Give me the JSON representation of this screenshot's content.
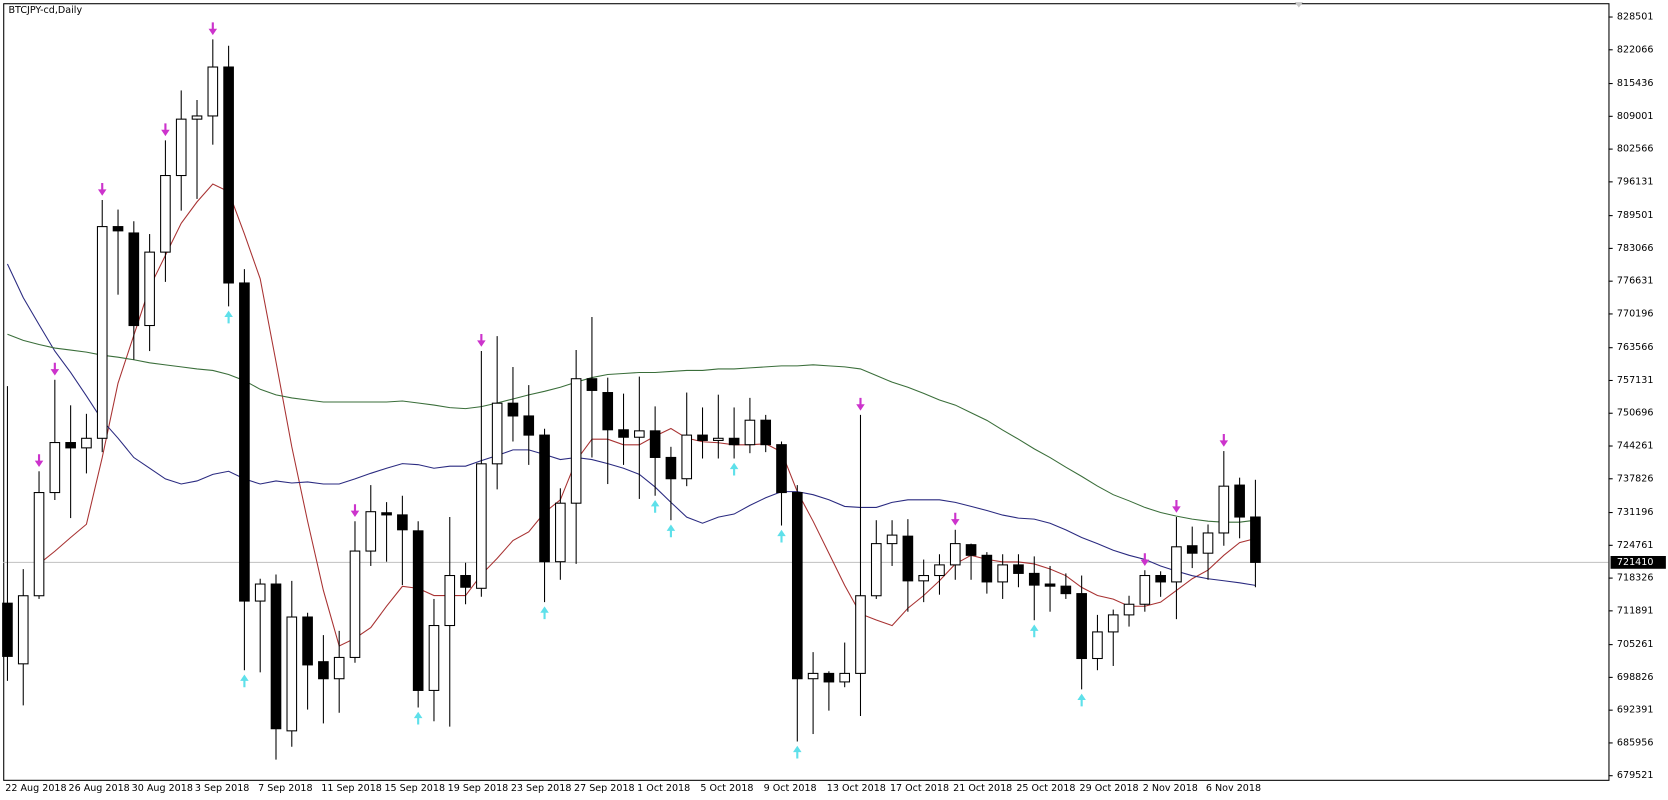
{
  "chart_data": {
    "type": "candlestick",
    "title": "BTCJPY-cd,Daily",
    "categories": [
      "22 Aug 2018",
      null,
      null,
      null,
      "26 Aug 2018",
      null,
      null,
      null,
      "30 Aug 2018",
      null,
      null,
      null,
      "3 Sep 2018",
      null,
      null,
      null,
      "7 Sep 2018",
      null,
      null,
      null,
      "11 Sep 2018",
      null,
      null,
      null,
      "15 Sep 2018",
      null,
      null,
      null,
      "19 Sep 2018",
      null,
      null,
      null,
      "23 Sep 2018",
      null,
      null,
      null,
      "27 Sep 2018",
      null,
      null,
      null,
      "1 Oct 2018",
      null,
      null,
      null,
      "5 Oct 2018",
      null,
      null,
      null,
      "9 Oct 2018",
      null,
      null,
      null,
      "13 Oct 2018",
      null,
      null,
      null,
      "17 Oct 2018",
      null,
      null,
      null,
      "21 Oct 2018",
      null,
      null,
      null,
      "25 Oct 2018",
      null,
      null,
      null,
      "29 Oct 2018",
      null,
      null,
      null,
      "2 Nov 2018",
      null,
      null,
      null,
      "6 Nov 2018",
      null,
      null,
      null
    ],
    "open": [
      713397,
      701489,
      714859,
      735122,
      744941,
      743896,
      745776,
      787347,
      786094,
      767920,
      782334,
      797374,
      808446,
      809073,
      818682,
      776276,
      713814,
      717157,
      688329,
      710681,
      701907,
      698565,
      702743,
      723633,
      731153,
      730735,
      727602,
      696267,
      709010,
      718828,
      716321,
      740763,
      752670,
      750163,
      746403,
      721544,
      733033,
      757475,
      754759,
      747447,
      745985,
      747238,
      742016,
      737838,
      746403,
      745358,
      745776,
      744523,
      749327,
      744523,
      735122,
      698565,
      699609,
      697938,
      699609,
      714859,
      725095,
      726557,
      717784,
      718828,
      720917,
      724886,
      722797,
      717575,
      720917,
      719246,
      717157,
      716739,
      715277,
      702534,
      707756,
      711099,
      713188,
      718828,
      717575,
      724677,
      723215,
      727184,
      736585,
      730318
    ],
    "high": [
      756012,
      720081,
      739300,
      757266,
      752252,
      750581,
      792570,
      790690,
      788392,
      785885,
      804268,
      814086,
      812206,
      824114,
      822860,
      778991,
      718201,
      719037,
      717784,
      711517,
      707130,
      707965,
      729482,
      736585,
      733242,
      734496,
      729482,
      714232,
      730318,
      721335,
      762906,
      765831,
      759772,
      756221,
      747656,
      735958,
      763115,
      769591,
      757683,
      754550,
      757892,
      752043,
      744105,
      754759,
      751834,
      754341,
      751834,
      753714,
      750372,
      745149,
      736585,
      703787,
      700027,
      705667,
      750372,
      729691,
      729691,
      729900,
      721962,
      723006,
      727811,
      725095,
      723424,
      723006,
      723006,
      722588,
      720708,
      719246,
      718828,
      711099,
      712143,
      714859,
      719873,
      719664,
      730318,
      728437,
      728855,
      743269,
      738047,
      737629
    ],
    "low": [
      698147,
      693342,
      714232,
      733660,
      730109,
      738882,
      743060,
      773978,
      761235,
      762906,
      776484,
      790481,
      792779,
      803433,
      771680,
      700236,
      699818,
      682688,
      685195,
      692507,
      689791,
      691880,
      701698,
      720708,
      721544,
      716948,
      692924,
      690209,
      689164,
      713188,
      714650,
      735749,
      745149,
      740554,
      713606,
      717992,
      721126,
      742016,
      736793,
      740554,
      733869,
      734496,
      729691,
      736376,
      741807,
      741807,
      741807,
      742852,
      743060,
      728646,
      686240,
      687702,
      692298,
      696894,
      691253,
      714232,
      720708,
      711725,
      713606,
      715068,
      717992,
      717992,
      715277,
      714232,
      716530,
      710054,
      711725,
      714232,
      696476,
      700236,
      701072,
      708801,
      711725,
      714650,
      710263,
      720290,
      717992,
      724677,
      726140,
      716530
    ],
    "close": [
      702952,
      714859,
      735122,
      744941,
      743896,
      745776,
      787347,
      786512,
      767920,
      782334,
      797374,
      808446,
      809073,
      818682,
      776276,
      713814,
      717157,
      688746,
      710681,
      701280,
      698565,
      702743,
      723633,
      731362,
      730735,
      727811,
      696267,
      709010,
      718828,
      716530,
      740763,
      752670,
      750163,
      746403,
      721544,
      733033,
      757475,
      755177,
      747447,
      745985,
      747238,
      742016,
      737838,
      746403,
      745358,
      745776,
      744523,
      749327,
      744523,
      735122,
      698565,
      699609,
      697938,
      699609,
      714859,
      725095,
      726766,
      717784,
      718828,
      720917,
      725095,
      722797,
      717575,
      720917,
      719246,
      716948,
      716739,
      715277,
      702534,
      707756,
      711099,
      713188,
      718828,
      717575,
      724468,
      723215,
      727184,
      736376,
      730318,
      721410
    ],
    "up_color": "#ffffff",
    "down_color": "#000000",
    "overlays": [
      {
        "color": "#a83232",
        "values": [
          null,
          null,
          721100,
          723600,
          726300,
          728900,
          742000,
          756600,
          766000,
          775400,
          781700,
          788000,
          792200,
          795700,
          794200,
          785900,
          777100,
          760800,
          744100,
          729500,
          715900,
          705000,
          706500,
          708600,
          712800,
          716700,
          716300,
          714900,
          714900,
          714900,
          719000,
          722200,
          725700,
          727400,
          731200,
          733700,
          741400,
          745600,
          745600,
          744500,
          744500,
          746200,
          747700,
          745800,
          745100,
          744900,
          744500,
          744500,
          744700,
          743100,
          735300,
          729500,
          723200,
          716900,
          711300,
          710100,
          709000,
          712400,
          714900,
          717800,
          721100,
          722800,
          722000,
          721500,
          721500,
          721100,
          720100,
          718800,
          716500,
          714900,
          714200,
          712800,
          712800,
          713600,
          715900,
          718200,
          719900,
          722800,
          725300,
          726100
        ]
      },
      {
        "color": "#2a2a80",
        "values": [
          780000,
          773400,
          768100,
          762900,
          758700,
          754100,
          749300,
          745800,
          742000,
          739900,
          737800,
          736800,
          737400,
          738700,
          739300,
          737800,
          736800,
          737400,
          737000,
          737200,
          736800,
          736800,
          737800,
          738900,
          739900,
          740800,
          740600,
          739900,
          740300,
          740300,
          741400,
          742400,
          743500,
          743500,
          742600,
          741600,
          742000,
          741600,
          740800,
          739900,
          738700,
          736200,
          733200,
          730300,
          729100,
          730300,
          730900,
          732600,
          734100,
          735300,
          735300,
          734700,
          733700,
          732400,
          732200,
          732200,
          733200,
          733700,
          733700,
          733700,
          733200,
          732400,
          731600,
          730700,
          730100,
          729900,
          729100,
          727800,
          726300,
          725100,
          723800,
          722800,
          722000,
          720700,
          719700,
          718800,
          718200,
          717800,
          717400,
          716900
        ]
      },
      {
        "color": "#3a6e3a",
        "values": [
          766200,
          765000,
          764200,
          763500,
          763100,
          762700,
          762100,
          761700,
          761200,
          760600,
          760200,
          759800,
          759400,
          759100,
          758300,
          757100,
          755400,
          754300,
          753700,
          753300,
          752900,
          752900,
          752900,
          752900,
          752900,
          753100,
          752700,
          752300,
          751800,
          751600,
          752000,
          752700,
          753500,
          754300,
          755000,
          755800,
          756800,
          757700,
          758300,
          758500,
          758700,
          758700,
          758900,
          759100,
          759100,
          759400,
          759400,
          759600,
          759800,
          760000,
          760000,
          760200,
          760000,
          759800,
          759400,
          758100,
          756800,
          755800,
          754600,
          753300,
          752300,
          750800,
          749300,
          747400,
          745600,
          743700,
          742000,
          740100,
          738300,
          736400,
          734700,
          733500,
          732200,
          731200,
          730500,
          729900,
          729500,
          729300,
          729300,
          729700
        ]
      }
    ],
    "arrows_down": {
      "color": "#cc33cc",
      "values": [
        null,
        null,
        739300,
        757266,
        null,
        null,
        792570,
        null,
        null,
        null,
        804268,
        null,
        null,
        824114,
        null,
        null,
        null,
        null,
        null,
        null,
        null,
        null,
        729482,
        null,
        null,
        null,
        null,
        null,
        null,
        null,
        762906,
        null,
        null,
        null,
        null,
        null,
        null,
        null,
        null,
        null,
        null,
        null,
        null,
        null,
        null,
        null,
        null,
        null,
        null,
        null,
        null,
        null,
        null,
        null,
        750372,
        null,
        null,
        null,
        null,
        null,
        727811,
        null,
        null,
        null,
        null,
        null,
        null,
        null,
        null,
        null,
        null,
        null,
        719873,
        null,
        730318,
        null,
        null,
        743269,
        null,
        null
      ]
    },
    "arrows_up": {
      "color": "#5ee0ea",
      "values": [
        null,
        null,
        null,
        null,
        null,
        null,
        null,
        null,
        null,
        null,
        null,
        null,
        null,
        null,
        771680,
        700236,
        null,
        null,
        null,
        null,
        null,
        null,
        null,
        null,
        null,
        null,
        692924,
        null,
        null,
        null,
        null,
        null,
        null,
        null,
        713606,
        null,
        null,
        null,
        null,
        null,
        null,
        734496,
        729691,
        null,
        null,
        null,
        741807,
        null,
        null,
        728646,
        686240,
        null,
        null,
        null,
        null,
        null,
        null,
        null,
        null,
        null,
        null,
        null,
        null,
        null,
        null,
        710054,
        null,
        null,
        696476,
        null,
        null,
        null,
        null,
        null,
        null,
        null,
        null,
        null,
        null,
        null
      ]
    },
    "last_price": 721410,
    "ylim": [
      678719,
      831216
    ],
    "yticks": [
      828501,
      822066,
      815436,
      809001,
      802566,
      796131,
      789501,
      783066,
      776631,
      770196,
      763566,
      757131,
      750696,
      744261,
      737826,
      731196,
      724761,
      718326,
      711891,
      705261,
      698826,
      692391,
      685956,
      679521
    ]
  }
}
